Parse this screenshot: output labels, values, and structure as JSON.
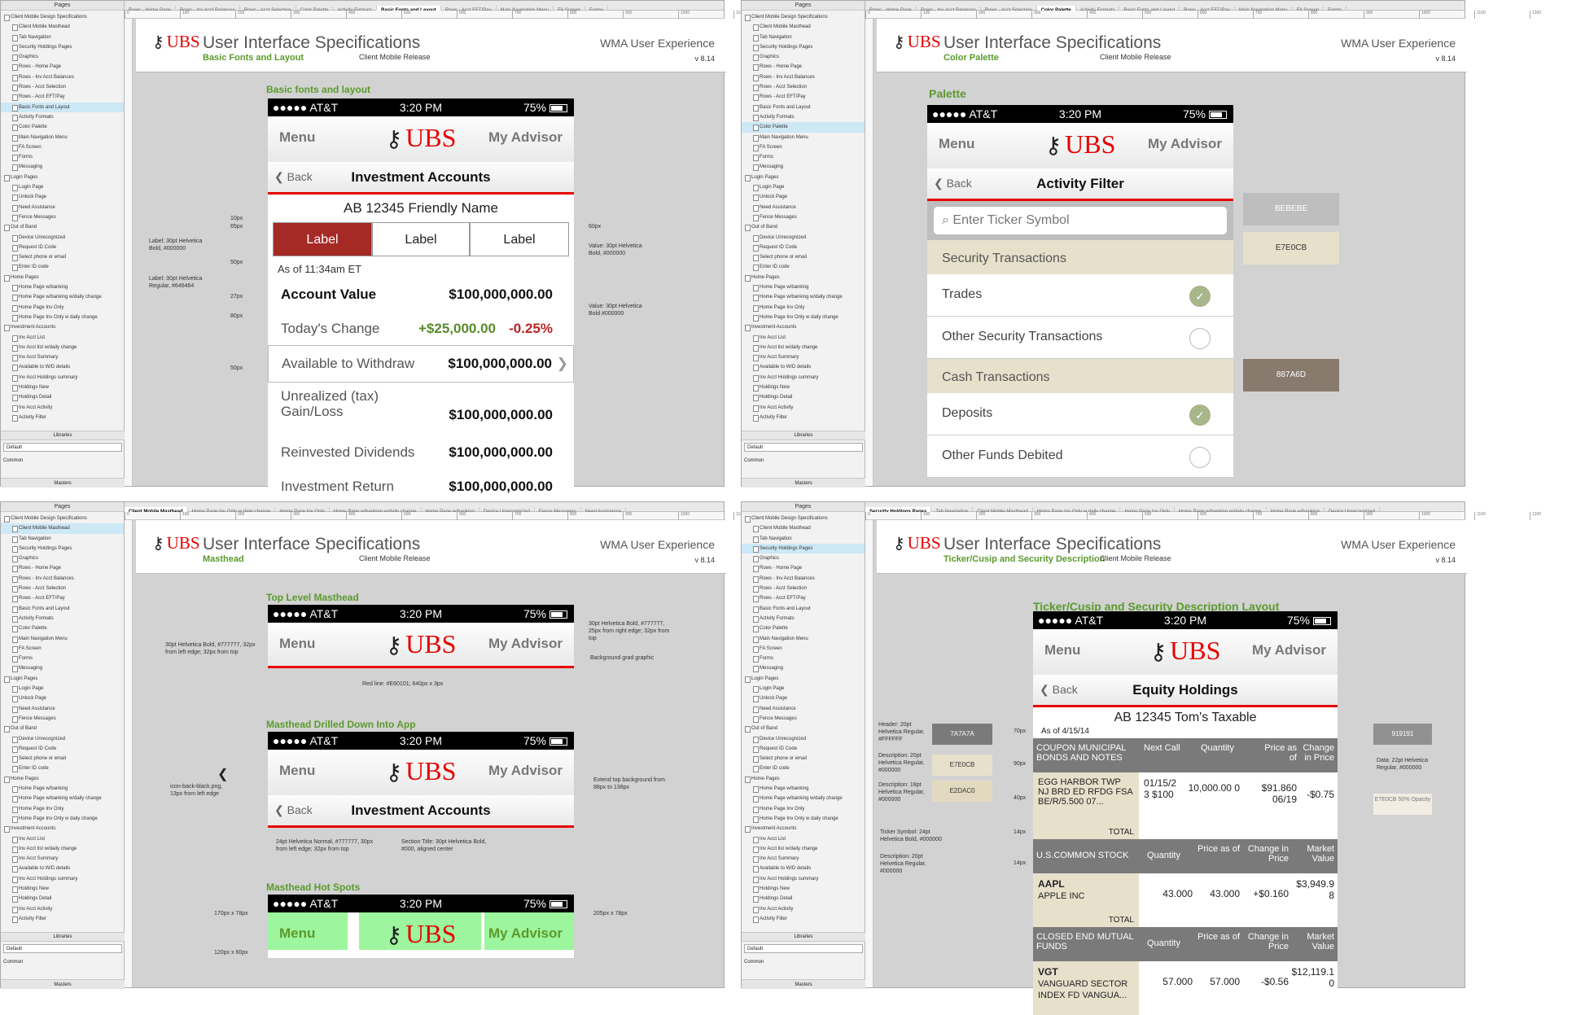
{
  "sidebar": {
    "pages_title": "Pages",
    "libraries_title": "Libraries",
    "library_default": "Default",
    "library_common": "Common",
    "masters_title": "Masters",
    "items": [
      {
        "label": "Client Mobile Design Specifications",
        "level": 0
      },
      {
        "label": "Client Mobile Masthead",
        "level": 1
      },
      {
        "label": "Tab Navigation",
        "level": 1
      },
      {
        "label": "Security Holdings Pages",
        "level": 1
      },
      {
        "label": "Graphics",
        "level": 1
      },
      {
        "label": "Rows - Home Page",
        "level": 1
      },
      {
        "label": "Rows - Inv Acct Balances",
        "level": 1
      },
      {
        "label": "Rows - Acct Selection",
        "level": 1
      },
      {
        "label": "Rows - Acct EFT/Pay",
        "level": 1
      },
      {
        "label": "Basic Fonts and Layout",
        "level": 1
      },
      {
        "label": "Activity Formats",
        "level": 1
      },
      {
        "label": "Color Palette",
        "level": 1
      },
      {
        "label": "Main Navigation Menu",
        "level": 1
      },
      {
        "label": "FA Screen",
        "level": 1
      },
      {
        "label": "Forms",
        "level": 1
      },
      {
        "label": "Messaging",
        "level": 1
      },
      {
        "label": "Login Pages",
        "level": 0
      },
      {
        "label": "Login Page",
        "level": 1
      },
      {
        "label": "Unlock Page",
        "level": 1
      },
      {
        "label": "Need Assistance",
        "level": 1
      },
      {
        "label": "Fence Messages",
        "level": 1
      },
      {
        "label": "Out of Band",
        "level": 0
      },
      {
        "label": "Device Unrecognized",
        "level": 1
      },
      {
        "label": "Request ID Code",
        "level": 1
      },
      {
        "label": "Select phone or email",
        "level": 1
      },
      {
        "label": "Enter ID code",
        "level": 1
      },
      {
        "label": "Home Pages",
        "level": 0
      },
      {
        "label": "Home Page w/banking",
        "level": 1
      },
      {
        "label": "Home Page w/banking w/daily change",
        "level": 1
      },
      {
        "label": "Home Page Inv Only",
        "level": 1
      },
      {
        "label": "Home Page Inv Only w daily change",
        "level": 1
      },
      {
        "label": "Investment Accounts",
        "level": 0
      },
      {
        "label": "Inv Acct List",
        "level": 1
      },
      {
        "label": "Inv Acct list w/daily change",
        "level": 1
      },
      {
        "label": "Inv Acct Summary",
        "level": 1
      },
      {
        "label": "Available to W/D details",
        "level": 1
      },
      {
        "label": "Inv Acct Holdings summary",
        "level": 1
      },
      {
        "label": "Holdings New",
        "level": 1
      },
      {
        "label": "Holdings Detail",
        "level": 1
      },
      {
        "label": "Inv Acct Activity",
        "level": 1
      },
      {
        "label": "Activity Filter",
        "level": 1
      }
    ]
  },
  "header": {
    "brand": "UBS",
    "title": "User Interface Specifications",
    "release": "Client Mobile Release",
    "wma": "WMA User Experience",
    "version": "v 8.14"
  },
  "phone_common": {
    "carrier": "●●●●● AT&T",
    "time": "3:20 PM",
    "battery": "75%",
    "menu": "Menu",
    "advisor": "My Advisor",
    "back": "Back"
  },
  "quadrants": [
    {
      "subtitle": "Basic Fonts and Layout",
      "tabs": [
        "Rows - Home Page",
        "Rows - Inv Acct Balances",
        "Rows - Acct Selection",
        "Color Palette",
        "Activity Formats",
        "Basic Fonts and Layout",
        "Rows - Acct EFT/Pay",
        "Main Navigation Menu",
        "FA Screen",
        "Forms"
      ],
      "active_tab": 5,
      "selected_page": 9
    },
    {
      "subtitle": "Color Palette",
      "tabs": [
        "Rows - Home Page",
        "Rows - Inv Acct Balances",
        "Rows - Acct Selection",
        "Color Palette",
        "Activity Formats",
        "Basic Fonts and Layout",
        "Rows - Acct EFT/Pay",
        "Main Navigation Menu",
        "FA Screen",
        "Forms"
      ],
      "active_tab": 3,
      "selected_page": 11
    },
    {
      "subtitle": "Masthead",
      "tabs": [
        "Client Mobile Masthead",
        "Home Page Inv Only w daily change",
        "Home Page Inv Only",
        "Home Page w/banking w/daily change",
        "Home Page w/banking",
        "Device Unrecognized",
        "Fence Messages",
        "Need Assistance"
      ],
      "active_tab": 0,
      "selected_page": 1
    },
    {
      "subtitle": "Ticker/Cusip and Security Description",
      "tabs": [
        "Security Holdings Pages",
        "Tab Navigation",
        "Client Mobile Masthead",
        "Home Page Inv Only w daily change",
        "Home Page Inv Only",
        "Home Page w/banking w/daily change",
        "Home Page w/banking",
        "Device Unrecognized"
      ],
      "active_tab": 0,
      "selected_page": 3
    }
  ],
  "ruler_ticks": [
    "0",
    "100",
    "200",
    "300",
    "400",
    "500",
    "600",
    "700",
    "800",
    "900",
    "1000",
    "1100",
    "1200"
  ],
  "q0": {
    "section": "Basic fonts and layout",
    "screen_title": "Investment Accounts",
    "account": "AB 12345   Friendly Name",
    "seg_labels": [
      "Label",
      "Label",
      "Label"
    ],
    "as_of": "As of 11:34am ET",
    "account_value_label": "Account Value",
    "account_value": "$100,000,000.00",
    "todays_change_label": "Today's Change",
    "change_amount": "+$25,000.00",
    "change_pct": "-0.25%",
    "available_label": "Available to Withdraw",
    "available_value": "$100,000,000.00",
    "unrealized_label_1": "Unrealized (tax)",
    "unrealized_label_2": "Gain/Loss",
    "unrealized_value": "$100,000,000.00",
    "reinvested_label": "Reinvested Dividends",
    "reinvested_value": "$100,000,000.00",
    "return_label": "Investment Return",
    "return_value": "$100,000,000.00",
    "anno_10px": "10px",
    "anno_65px": "65px",
    "anno_50px_a": "50px",
    "anno_27px": "27px",
    "anno_80px": "80px",
    "anno_50px_b": "50px",
    "anno_60px": "60px",
    "anno_label_bold": "Label: 30pt Helvetica Bold, #000000",
    "anno_label_reg": "Label: 30pt Helvetica Regular, #646464",
    "anno_value_bold_1": "Value: 30pt Helvetica Bold, #000000",
    "anno_value_bold_2": "Value: 30pt Helvetica Bold #000000"
  },
  "q1": {
    "section": "Palette",
    "screen_title": "Activity Filter",
    "search_placeholder": "Enter Ticker Symbol",
    "cat1": "Security Transactions",
    "cat2": "Cash Transactions",
    "rows1": [
      {
        "label": "Trades",
        "checked": true
      },
      {
        "label": "Other Security Transactions",
        "checked": false
      }
    ],
    "rows2": [
      {
        "label": "Deposits",
        "checked": true
      },
      {
        "label": "Other Funds Debited",
        "checked": false
      }
    ],
    "sw1": "BEBEBE",
    "sw1_color": "#bebebe",
    "sw2": "E7E0CB",
    "sw2_color": "#e7e0cb",
    "sw3": "887A6D",
    "sw3_color": "#887a6d"
  },
  "q2": {
    "section1": "Top Level Masthead",
    "section2": "Masthead Drilled Down Into App",
    "section3": "Masthead Hot Spots",
    "screen_title": "Investment Accounts",
    "anno_left": "30pt Helvetica Bold, #777777, 32px from left edge; 32px from top",
    "anno_right": "30pt Helvetica Bold, #777777, 25px from right edge; 32px from top",
    "anno_grad": "Background grad graphic",
    "anno_red": "Red line: #E60101; 640px x 3px",
    "anno_icon": "icon-back-black.png, 13px from left edge",
    "anno_back": "24pt Helvetica Normal, #777777, 30px from left edge; 32px from top",
    "anno_title": "Section Title: 30pt Helvetica Bold, #000, aligned center",
    "anno_extend": "Extend top background from 88px to 138px",
    "anno_170": "170px x 78px",
    "anno_205": "205px x 78px",
    "anno_120": "120px x 60px"
  },
  "q3": {
    "section": "Ticker/Cusip and Security Description Layout",
    "screen_title": "Equity Holdings",
    "account": "AB 12345   Tom's Taxable",
    "as_of": "As of 4/15/14",
    "t1_head": [
      "COUPON MUNICIPAL BONDS AND NOTES",
      "Next Call",
      "Quantity",
      "Price as of",
      "Change in Price"
    ],
    "t1_desc": "EGG HARBOR TWP NJ BRD ED RFDG FSA BE/R/5.500 07...",
    "t1_vals": [
      "01/15/2 3 $100",
      "10,000.00 0",
      "$91.860 06/19",
      "-$0.75"
    ],
    "t2_head": [
      "U.S.COMMON STOCK",
      "Quantity",
      "Price as of",
      "Change in Price",
      "Market Value"
    ],
    "t2_ticker": "AAPL",
    "t2_desc": "APPLE INC",
    "t2_vals": [
      "43.000",
      "43.000",
      "+$0.160",
      "$3,949.9 8"
    ],
    "t3_head": [
      "CLOSED END MUTUAL FUNDS",
      "Quantity",
      "Price as of",
      "Change in Price",
      "Market Value"
    ],
    "t3_ticker": "VGT",
    "t3_desc": "VANGUARD SECTOR INDEX FD VANGUA...",
    "t3_vals": [
      "57.000",
      "57.000",
      "-$0.56",
      "$12,119.1 0"
    ],
    "total": "TOTAL",
    "sw_7a": "7A7A7A",
    "sw_e7": "E7E0CB",
    "sw_e2": "E2DAC0",
    "sw_91": "919191",
    "sw_e7b": "E7E0CB 50% Opacity",
    "anno_header": "Header: 20pt Helvetica Regular, #FFFFFF",
    "anno_desc1": "Description: 20pt Helvetica Regular, #000000",
    "anno_desc2": "Description: 18pt Helvetica Regular, #000000",
    "anno_ticker": "Ticker Symbol: 24pt Helvetica Bold, #000000",
    "anno_desc3": "Description: 20pt Helvetica Regular, #000000",
    "anno_data": "Data: 22pt Helvetica Regular, #000000",
    "anno_70": "70px",
    "anno_90": "90px",
    "anno_40": "40px",
    "anno_14a": "14px",
    "anno_14b": "14px"
  }
}
